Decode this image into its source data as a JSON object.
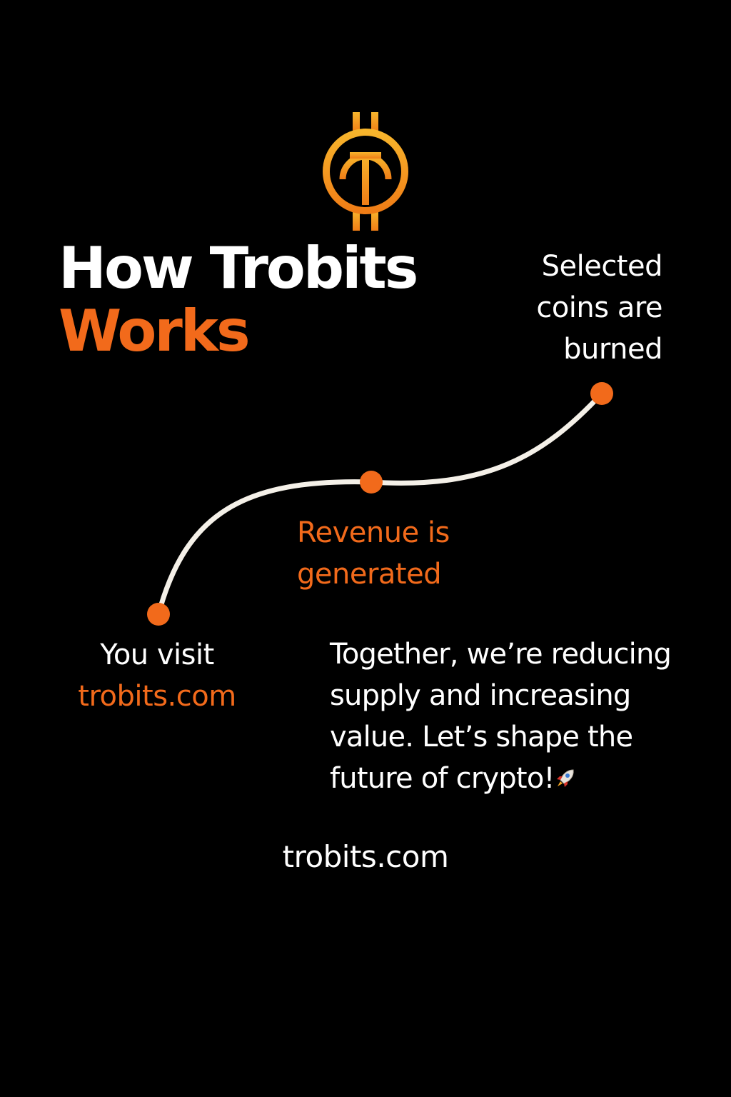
{
  "title": {
    "line1": "How Trobits",
    "line2": "Works"
  },
  "steps": {
    "burn": [
      "Selected",
      "coins are",
      "burned"
    ],
    "revenue": [
      "Revenue is",
      "generated"
    ],
    "visit": {
      "line1": "You visit",
      "line2": "trobits.com"
    }
  },
  "message": {
    "text": "Together, we’re reducing supply and increasing value. Let’s shape the future of crypto!",
    "icon": "rocket-icon"
  },
  "footer": {
    "url": "trobits.com"
  },
  "colors": {
    "background": "#000000",
    "accent": "#f26a1b",
    "logo_gold": "#f5a623",
    "text": "#ffffff",
    "path": "#f4f0e8"
  }
}
